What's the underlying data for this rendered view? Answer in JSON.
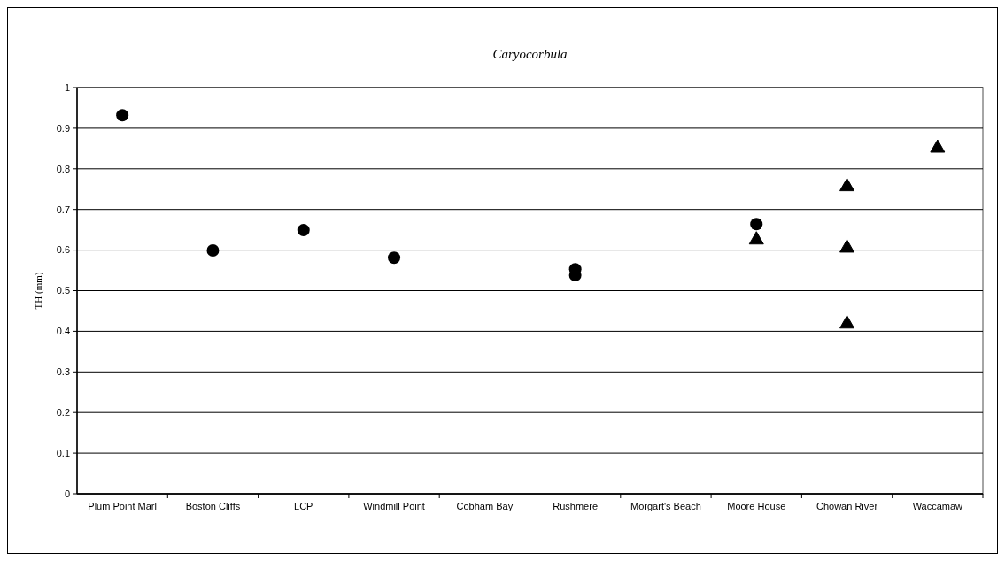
{
  "chart_data": {
    "type": "scatter",
    "title": "Caryocorbula",
    "ylabel": "TH (mm)",
    "categories": [
      "Plum Point Marl",
      "Boston Cliffs",
      "LCP",
      "Windmill Point",
      "Cobham Bay",
      "Rushmere",
      "Morgart's Beach",
      "Moore House",
      "Chowan River",
      "Waccamaw"
    ],
    "series": [
      {
        "color": "#000000",
        "marker": "circle",
        "x": [
          "Plum Point Marl",
          "Boston Cliffs",
          "LCP",
          "Windmill Point",
          "Rushmere",
          "Rushmere",
          "Moore House"
        ],
        "values": [
          0.932,
          0.599,
          0.649,
          0.581,
          0.553,
          0.538,
          0.664
        ]
      },
      {
        "color": "#000000",
        "marker": "triangle",
        "x": [
          "Moore House",
          "Chowan River",
          "Chowan River",
          "Chowan River",
          "Waccamaw"
        ],
        "values": [
          0.628,
          0.759,
          0.608,
          0.421,
          0.854
        ]
      }
    ],
    "ylim": [
      0,
      1
    ],
    "yticks": [
      0,
      0.1,
      0.2,
      0.3,
      0.4,
      0.5,
      0.6,
      0.7,
      0.8,
      0.9,
      1
    ],
    "grid": "y"
  }
}
